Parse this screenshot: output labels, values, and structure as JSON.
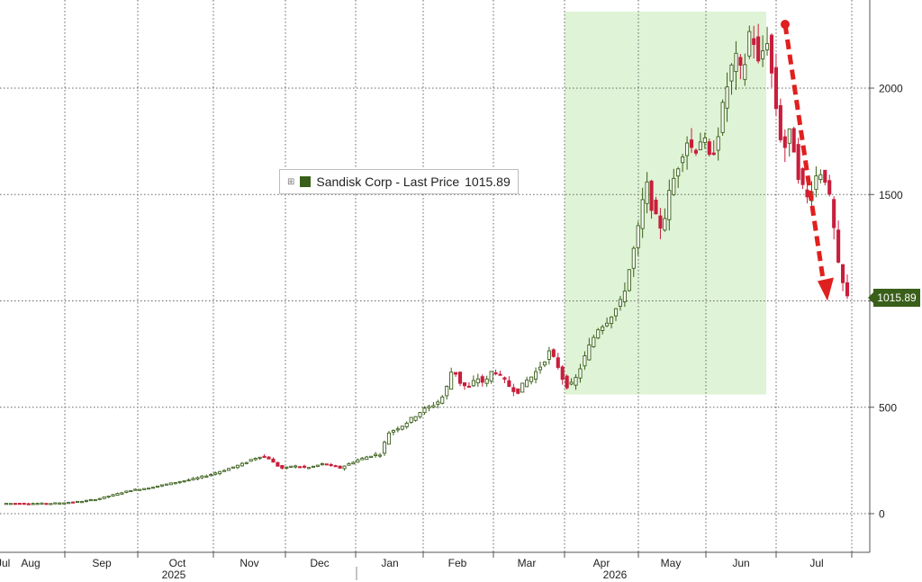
{
  "chart_data": {
    "type": "candlestick",
    "series_name": "Sandisk Corp - Last Price",
    "last_price": "1015.89",
    "ylim": [
      -180,
      2400
    ],
    "y_ticks": [
      0,
      500,
      1000,
      1500,
      2000
    ],
    "y_tick_labels": [
      "0",
      "500",
      "1000",
      "1500",
      "2000"
    ],
    "grid": true,
    "x_month_labels": [
      "Jul",
      "Aug",
      "Sep",
      "Oct",
      "Nov",
      "Dec",
      "Jan",
      "Feb",
      "Mar",
      "Apr",
      "May",
      "Jun",
      "Jul"
    ],
    "x_year_labels": [
      "2025",
      "2026"
    ],
    "highlight_region": {
      "from": "Apr",
      "to": "Jun",
      "y_range": [
        560,
        2360
      ]
    },
    "annotation": {
      "type": "dashed-arrow",
      "from_price": 2300,
      "to_price": 1000
    },
    "colors": {
      "up": "#3a5f1a",
      "down": "#c81e3c",
      "highlight": "#dff3d6",
      "arrow": "#e0201e",
      "legend": "#3a5f1a"
    },
    "price_path": [
      [
        0,
        48
      ],
      [
        6,
        48
      ],
      [
        8,
        52
      ],
      [
        10,
        58
      ],
      [
        12,
        70
      ],
      [
        14,
        90
      ],
      [
        16,
        110
      ],
      [
        18,
        120
      ],
      [
        20,
        135
      ],
      [
        22,
        150
      ],
      [
        24,
        165
      ],
      [
        26,
        185
      ],
      [
        28,
        210
      ],
      [
        30,
        235
      ],
      [
        31,
        255
      ],
      [
        32,
        270
      ],
      [
        33,
        265
      ],
      [
        34,
        230
      ],
      [
        35,
        210
      ],
      [
        36,
        225
      ],
      [
        38,
        215
      ],
      [
        40,
        235
      ],
      [
        42,
        215
      ],
      [
        44,
        250
      ],
      [
        46,
        275
      ],
      [
        47,
        280
      ],
      [
        48,
        380
      ],
      [
        50,
        420
      ],
      [
        52,
        480
      ],
      [
        54,
        520
      ],
      [
        55,
        560
      ],
      [
        56,
        690
      ],
      [
        57,
        610
      ],
      [
        58,
        590
      ],
      [
        59,
        640
      ],
      [
        60,
        610
      ],
      [
        61,
        680
      ],
      [
        62,
        640
      ],
      [
        63,
        600
      ],
      [
        64,
        570
      ],
      [
        65,
        620
      ],
      [
        66,
        650
      ],
      [
        67,
        700
      ],
      [
        68,
        760
      ],
      [
        69,
        700
      ],
      [
        70,
        600
      ],
      [
        71,
        610
      ],
      [
        72,
        700
      ],
      [
        73,
        790
      ],
      [
        74,
        870
      ],
      [
        75,
        900
      ],
      [
        76,
        950
      ],
      [
        77,
        1000
      ],
      [
        78,
        1160
      ],
      [
        79,
        1330
      ],
      [
        80,
        1560
      ],
      [
        81,
        1400
      ],
      [
        82,
        1340
      ],
      [
        83,
        1520
      ],
      [
        84,
        1640
      ],
      [
        85,
        1760
      ],
      [
        86,
        1700
      ],
      [
        87,
        1780
      ],
      [
        88,
        1650
      ],
      [
        89,
        1800
      ],
      [
        90,
        2000
      ],
      [
        91,
        2150
      ],
      [
        92,
        2050
      ],
      [
        93,
        2300
      ],
      [
        94,
        2100
      ],
      [
        95,
        2250
      ],
      [
        96,
        1950
      ],
      [
        97,
        1700
      ],
      [
        98,
        1800
      ],
      [
        99,
        1580
      ],
      [
        100,
        1480
      ],
      [
        101,
        1580
      ],
      [
        102,
        1620
      ],
      [
        103,
        1440
      ],
      [
        104,
        1130
      ],
      [
        105,
        1015.89
      ]
    ],
    "price_path_note": ""
  }
}
